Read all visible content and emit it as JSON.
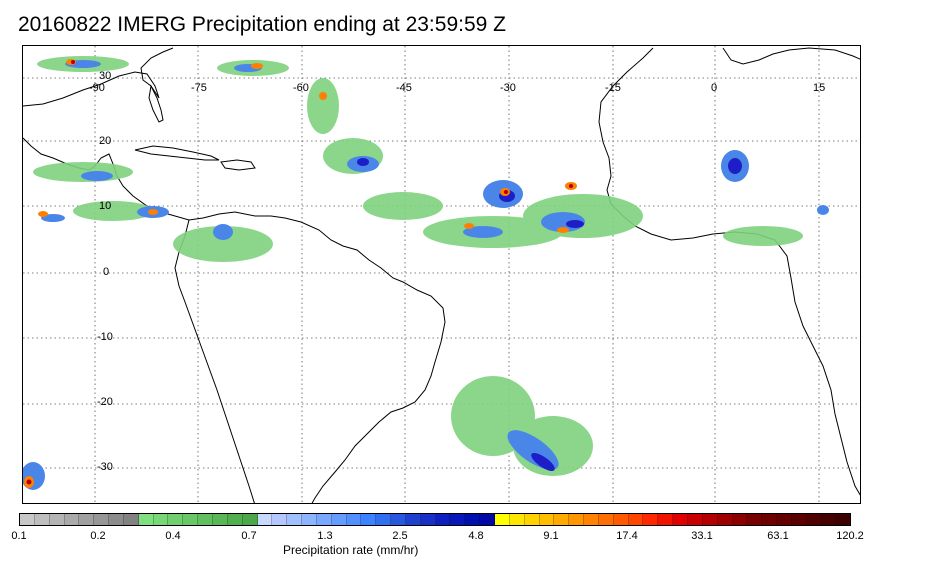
{
  "title": "20160822 IMERG Precipitation ending at 23:59:59 Z",
  "map": {
    "longitude_labels": [
      "-90",
      "-75",
      "-60",
      "-45",
      "-30",
      "-15",
      "0",
      "15"
    ],
    "latitude_labels": [
      "30",
      "20",
      "10",
      "0",
      "-10",
      "-20",
      "-30"
    ],
    "gridlines": "dotted",
    "colors": {
      "land_outline": "#000000",
      "light_rain": "#7fd27f",
      "moderate_rain": "#4a86e8",
      "heavy_rain": "#1e1ec8",
      "intense_rain": "#ff7f00",
      "extreme_rain": "#b40000"
    }
  },
  "colorbar": {
    "title": "Precipitation rate (mm/hr)",
    "tick_labels": [
      "0.1",
      "0.2",
      "0.4",
      "0.7",
      "1.3",
      "2.5",
      "4.8",
      "9.1",
      "17.4",
      "33.1",
      "63.1",
      "120.2"
    ],
    "colors": [
      "#c8c8c8",
      "#bebebe",
      "#b4b4b4",
      "#aaaaaa",
      "#a0a0a0",
      "#969696",
      "#8c8c8c",
      "#828282",
      "#7fe07f",
      "#78d878",
      "#70d070",
      "#68c868",
      "#60c060",
      "#58b858",
      "#50b050",
      "#4aa84a",
      "#c8d8ff",
      "#b4c8ff",
      "#a0c0ff",
      "#8cb4ff",
      "#78a8ff",
      "#649cff",
      "#5090ff",
      "#3c84ff",
      "#3070f0",
      "#2858e0",
      "#2040d0",
      "#1830c8",
      "#1020c0",
      "#0818b8",
      "#0010b0",
      "#0008a8",
      "#ffff00",
      "#ffe600",
      "#ffd200",
      "#ffbe00",
      "#ffaa00",
      "#ff9600",
      "#ff8200",
      "#ff6e00",
      "#ff5a00",
      "#ff4600",
      "#ff2800",
      "#f01400",
      "#e00000",
      "#c80000",
      "#b40000",
      "#a00000",
      "#8c0000",
      "#780000",
      "#6e0000",
      "#640000",
      "#5a0000",
      "#500000",
      "#460000",
      "#3c0000"
    ]
  }
}
